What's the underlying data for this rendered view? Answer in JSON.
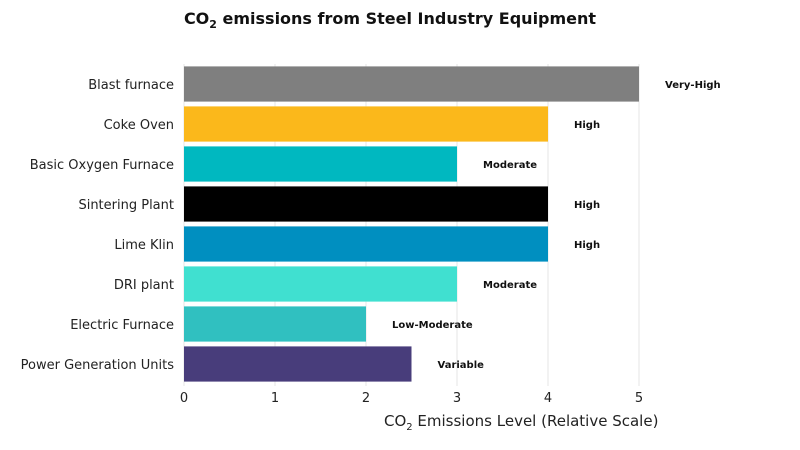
{
  "chart_data": {
    "type": "bar",
    "orientation": "horizontal",
    "title": {
      "prefix": "CO",
      "sub": "2",
      "suffix": " emissions from Steel Industry Equipment"
    },
    "xlabel": {
      "prefix": "CO",
      "sub": "2",
      "suffix": " Emissions Level (Relative Scale)"
    },
    "ylabel": "",
    "xlim": [
      0,
      5
    ],
    "xticks": [
      0,
      1,
      2,
      3,
      4,
      5
    ],
    "grid": true,
    "categories": [
      "Blast furnace",
      "Coke Oven",
      "Basic Oxygen Furnace",
      "Sintering Plant",
      "Lime Klin",
      "DRI plant",
      "Electric Furnace",
      "Power Generation Units"
    ],
    "values": [
      5,
      4,
      3,
      4,
      4,
      3,
      2,
      2.5
    ],
    "data_labels": [
      "Very-High",
      "High",
      "Moderate",
      "High",
      "High",
      "Moderate",
      "Low-Moderate",
      "Variable"
    ],
    "colors": [
      "#7f7f7f",
      "#fbb81b",
      "#00b8c0",
      "#000000",
      "#008fc0",
      "#40e0d0",
      "#30c0c0",
      "#483d7b"
    ]
  }
}
